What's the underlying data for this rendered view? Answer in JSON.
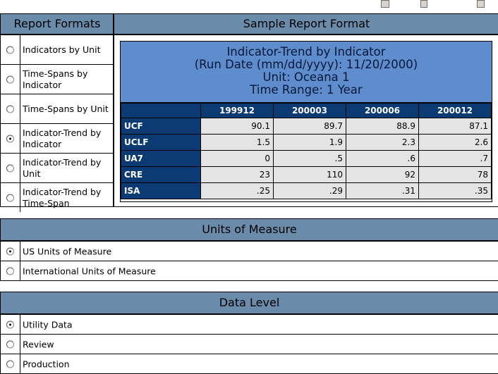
{
  "report_formats": {
    "title": "Report Formats",
    "options": [
      {
        "label": "Indicators by Unit",
        "checked": false
      },
      {
        "label": "Time-Spans by Indicator",
        "checked": false
      },
      {
        "label": "Time-Spans by Unit",
        "checked": false
      },
      {
        "label": "Indicator-Trend by Indicator",
        "checked": true
      },
      {
        "label": "Indicator-Trend by Unit",
        "checked": false
      },
      {
        "label": "Indicator-Trend by Time-Span",
        "checked": false
      }
    ]
  },
  "sample_report": {
    "title": "Sample Report Format",
    "report_title_lines": [
      "Indicator-Trend by Indicator",
      "(Run Date (mm/dd/yyyy): 11/20/2000)",
      "Unit: Oceana 1",
      "Time Range: 1 Year"
    ],
    "columns": [
      "199912",
      "200003",
      "200006",
      "200012"
    ],
    "rows": [
      {
        "label": "UCF",
        "values": [
          "90.1",
          "89.7",
          "88.9",
          "87.1"
        ]
      },
      {
        "label": "UCLF",
        "values": [
          "1.5",
          "1.9",
          "2.3",
          "2.6"
        ]
      },
      {
        "label": "UA7",
        "values": [
          "0",
          ".5",
          ".6",
          ".7"
        ]
      },
      {
        "label": "CRE",
        "values": [
          "23",
          "110",
          "92",
          "78"
        ]
      },
      {
        "label": "ISA",
        "values": [
          ".25",
          ".29",
          ".31",
          ".35"
        ]
      }
    ]
  },
  "units_of_measure": {
    "title": "Units of Measure",
    "options": [
      {
        "label": "US Units of Measure",
        "checked": true
      },
      {
        "label": "International Units of Measure",
        "checked": false
      }
    ]
  },
  "data_level": {
    "title": "Data Level",
    "options": [
      {
        "label": "Utility Data",
        "checked": true
      },
      {
        "label": "Review",
        "checked": false
      },
      {
        "label": "Production",
        "checked": false
      }
    ]
  },
  "colors": {
    "panel_header": "#6b8bab",
    "report_title_bg": "#5e8ccc",
    "table_header": "#0c3a72",
    "table_cell": "#e4e4e4"
  }
}
